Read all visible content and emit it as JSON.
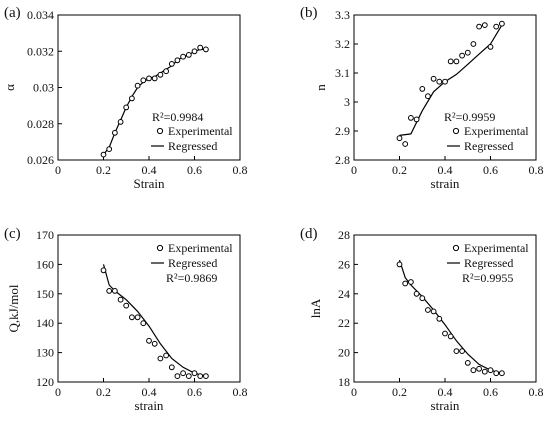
{
  "figure": {
    "panels": [
      {
        "letter": "(a)",
        "r2": "R²=0.9984",
        "legend_experimental": "Experimental",
        "legend_regressed": "Regressed"
      },
      {
        "letter": "(b)",
        "r2": "R²=0.9959",
        "legend_experimental": "Experimental",
        "legend_regressed": "Regressed"
      },
      {
        "letter": "(c)",
        "r2": "R²=0.9869",
        "legend_experimental": "Experimental",
        "legend_regressed": "Regressed"
      },
      {
        "letter": "(d)",
        "r2": "R²=0.9955",
        "legend_experimental": "Experimental",
        "legend_regressed": "Regressed"
      }
    ]
  },
  "chart_data": [
    {
      "type": "scatter",
      "panel": "(a)",
      "xlabel": "Strain",
      "ylabel": "α",
      "xlim": [
        0,
        0.8
      ],
      "ylim": [
        0.026,
        0.034
      ],
      "xticks": [
        0,
        0.2,
        0.4,
        0.6,
        0.8
      ],
      "xtick_labels": [
        "0",
        "0.2",
        "0.4",
        "0.6",
        "0.8"
      ],
      "yticks": [
        0.026,
        0.028,
        0.03,
        0.032,
        0.034
      ],
      "ytick_labels": [
        "0.026",
        "0.028",
        "0.03",
        "0.032",
        "0.034"
      ],
      "legend_position": "lower-right",
      "annotation": "R²=0.9984",
      "series": [
        {
          "name": "Experimental",
          "kind": "scatter",
          "x": [
            0.2,
            0.225,
            0.25,
            0.275,
            0.3,
            0.325,
            0.35,
            0.375,
            0.4,
            0.425,
            0.45,
            0.475,
            0.5,
            0.525,
            0.55,
            0.575,
            0.6,
            0.625,
            0.65
          ],
          "y": [
            0.0263,
            0.0266,
            0.0275,
            0.0281,
            0.0289,
            0.0294,
            0.0301,
            0.0304,
            0.0305,
            0.0305,
            0.0307,
            0.0309,
            0.0313,
            0.0315,
            0.0317,
            0.0318,
            0.032,
            0.0322,
            0.0321
          ]
        },
        {
          "name": "Regressed",
          "kind": "line",
          "x": [
            0.2,
            0.225,
            0.25,
            0.275,
            0.3,
            0.325,
            0.35,
            0.375,
            0.4,
            0.425,
            0.45,
            0.475,
            0.5,
            0.525,
            0.55,
            0.575,
            0.6,
            0.625,
            0.65
          ],
          "y": [
            0.0263,
            0.0267,
            0.0275,
            0.0282,
            0.0289,
            0.0295,
            0.03,
            0.0303,
            0.0305,
            0.0306,
            0.0308,
            0.031,
            0.0312,
            0.0315,
            0.0317,
            0.0318,
            0.032,
            0.0321,
            0.0321
          ]
        }
      ]
    },
    {
      "type": "scatter",
      "panel": "(b)",
      "xlabel": "strain",
      "ylabel": "n",
      "xlim": [
        0,
        0.8
      ],
      "ylim": [
        2.8,
        3.3
      ],
      "xticks": [
        0,
        0.2,
        0.4,
        0.6,
        0.8
      ],
      "xtick_labels": [
        "0",
        "0.2",
        "0.4",
        "0.6",
        "0.8"
      ],
      "yticks": [
        2.8,
        2.9,
        3.0,
        3.1,
        3.2,
        3.3
      ],
      "ytick_labels": [
        "2.8",
        "2.9",
        "3",
        "3.1",
        "3.2",
        "3.3"
      ],
      "legend_position": "lower-right",
      "annotation": "R²=0.9959",
      "series": [
        {
          "name": "Experimental",
          "kind": "scatter",
          "x": [
            0.2,
            0.225,
            0.25,
            0.275,
            0.3,
            0.325,
            0.35,
            0.375,
            0.4,
            0.425,
            0.45,
            0.475,
            0.5,
            0.525,
            0.55,
            0.575,
            0.6,
            0.625,
            0.65
          ],
          "y": [
            2.875,
            2.855,
            2.945,
            2.94,
            3.045,
            3.02,
            3.08,
            3.07,
            3.07,
            3.14,
            3.14,
            3.16,
            3.17,
            3.2,
            3.26,
            3.265,
            3.19,
            3.26,
            3.27
          ]
        },
        {
          "name": "Regressed",
          "kind": "line",
          "x": [
            0.2,
            0.25,
            0.275,
            0.3,
            0.35,
            0.4,
            0.45,
            0.5,
            0.55,
            0.6,
            0.65
          ],
          "y": [
            2.885,
            2.89,
            2.93,
            2.97,
            3.035,
            3.07,
            3.095,
            3.13,
            3.165,
            3.2,
            3.265
          ]
        }
      ]
    },
    {
      "type": "scatter",
      "panel": "(c)",
      "xlabel": "strain",
      "ylabel": "Q,kJ/mol",
      "xlim": [
        0,
        0.8
      ],
      "ylim": [
        120,
        170
      ],
      "xticks": [
        0,
        0.2,
        0.4,
        0.6,
        0.8
      ],
      "xtick_labels": [
        "0",
        "0.2",
        "0.4",
        "0.6",
        "0.8"
      ],
      "yticks": [
        120,
        130,
        140,
        150,
        160,
        170
      ],
      "ytick_labels": [
        "120",
        "130",
        "140",
        "150",
        "160",
        "170"
      ],
      "legend_position": "top-right",
      "annotation": "R²=0.9869",
      "series": [
        {
          "name": "Experimental",
          "kind": "scatter",
          "x": [
            0.2,
            0.225,
            0.25,
            0.275,
            0.3,
            0.325,
            0.35,
            0.375,
            0.4,
            0.425,
            0.45,
            0.475,
            0.5,
            0.525,
            0.55,
            0.575,
            0.6,
            0.625,
            0.65
          ],
          "y": [
            158,
            151,
            151,
            148,
            146,
            142,
            142,
            140,
            134,
            133,
            128,
            129,
            125,
            122,
            123,
            122,
            123,
            122,
            122
          ]
        },
        {
          "name": "Regressed",
          "kind": "line",
          "x": [
            0.2,
            0.225,
            0.25,
            0.3,
            0.35,
            0.4,
            0.45,
            0.5,
            0.55,
            0.6,
            0.65
          ],
          "y": [
            160,
            153,
            151,
            148,
            144,
            139,
            133,
            128,
            125,
            123,
            122
          ]
        }
      ]
    },
    {
      "type": "scatter",
      "panel": "(d)",
      "xlabel": "strain",
      "ylabel": "lnA",
      "xlim": [
        0,
        0.8
      ],
      "ylim": [
        18,
        28
      ],
      "xticks": [
        0,
        0.2,
        0.4,
        0.6,
        0.8
      ],
      "xtick_labels": [
        "0",
        "0.2",
        "0.4",
        "0.6",
        "0.8"
      ],
      "yticks": [
        18,
        20,
        22,
        24,
        26,
        28
      ],
      "ytick_labels": [
        "18",
        "20",
        "22",
        "24",
        "26",
        "28"
      ],
      "legend_position": "top-right",
      "annotation": "R²=0.9955",
      "series": [
        {
          "name": "Experimental",
          "kind": "scatter",
          "x": [
            0.2,
            0.225,
            0.25,
            0.275,
            0.3,
            0.325,
            0.35,
            0.375,
            0.4,
            0.425,
            0.45,
            0.475,
            0.5,
            0.525,
            0.55,
            0.575,
            0.6,
            0.625,
            0.65
          ],
          "y": [
            26.0,
            24.7,
            24.8,
            24.0,
            23.7,
            22.9,
            22.8,
            22.3,
            21.3,
            21.1,
            20.1,
            20.1,
            19.3,
            18.8,
            18.9,
            18.7,
            18.8,
            18.6,
            18.6
          ]
        },
        {
          "name": "Regressed",
          "kind": "line",
          "x": [
            0.2,
            0.225,
            0.25,
            0.3,
            0.35,
            0.4,
            0.45,
            0.5,
            0.55,
            0.6,
            0.65
          ],
          "y": [
            26.3,
            25.1,
            24.6,
            23.8,
            22.9,
            21.9,
            20.8,
            19.9,
            19.2,
            18.8,
            18.6
          ]
        }
      ]
    }
  ]
}
